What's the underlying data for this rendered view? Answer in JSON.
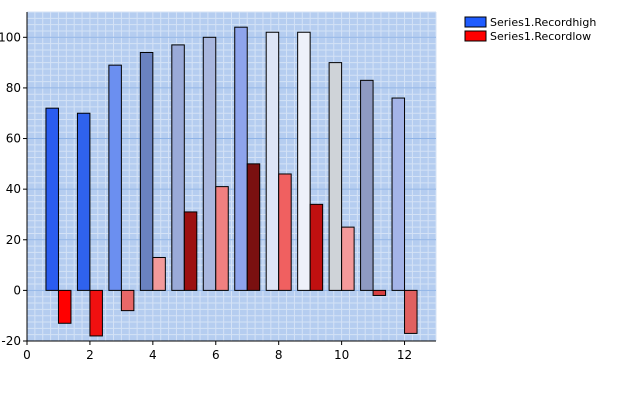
{
  "chart_data": {
    "type": "bar",
    "title": "",
    "xlabel": "",
    "ylabel": "",
    "xlim": [
      0,
      13
    ],
    "ylim": [
      -20,
      110
    ],
    "x_ticks": [
      "0",
      "2",
      "4",
      "6",
      "8",
      "10",
      "12"
    ],
    "y_ticks": [
      "-20",
      "0",
      "20",
      "40",
      "60",
      "80",
      "100"
    ],
    "grid": true,
    "legend_position": "top-right",
    "series": [
      {
        "name": "Series1.Recordhigh",
        "legend_color": "#1f5cff",
        "x": [
          1,
          2,
          3,
          4,
          5,
          6,
          7,
          8,
          9,
          10,
          11,
          12
        ],
        "values": [
          72,
          70,
          89,
          94,
          97,
          100,
          104,
          102,
          102,
          90,
          83,
          76
        ],
        "colors": [
          "#2a5cf0",
          "#2f62ee",
          "#6b8ff0",
          "#6a82c0",
          "#9aaad8",
          "#a9b7de",
          "#8ea4ec",
          "#dde5f6",
          "#eef1f9",
          "#cfd3d8",
          "#8e9ac2",
          "#a4b4e8"
        ]
      },
      {
        "name": "Series1.Recordlow",
        "legend_color": "#ff0000",
        "x": [
          1,
          2,
          3,
          4,
          5,
          6,
          7,
          8,
          9,
          10,
          11,
          12
        ],
        "values": [
          -13,
          -18,
          -8,
          13,
          31,
          41,
          50,
          46,
          34,
          25,
          -2,
          -17
        ],
        "colors": [
          "#ff0000",
          "#f01010",
          "#e86868",
          "#f29a9a",
          "#9c1010",
          "#f08080",
          "#7a1010",
          "#f06060",
          "#c01010",
          "#f49a9a",
          "#d84040",
          "#e06060"
        ]
      }
    ]
  }
}
